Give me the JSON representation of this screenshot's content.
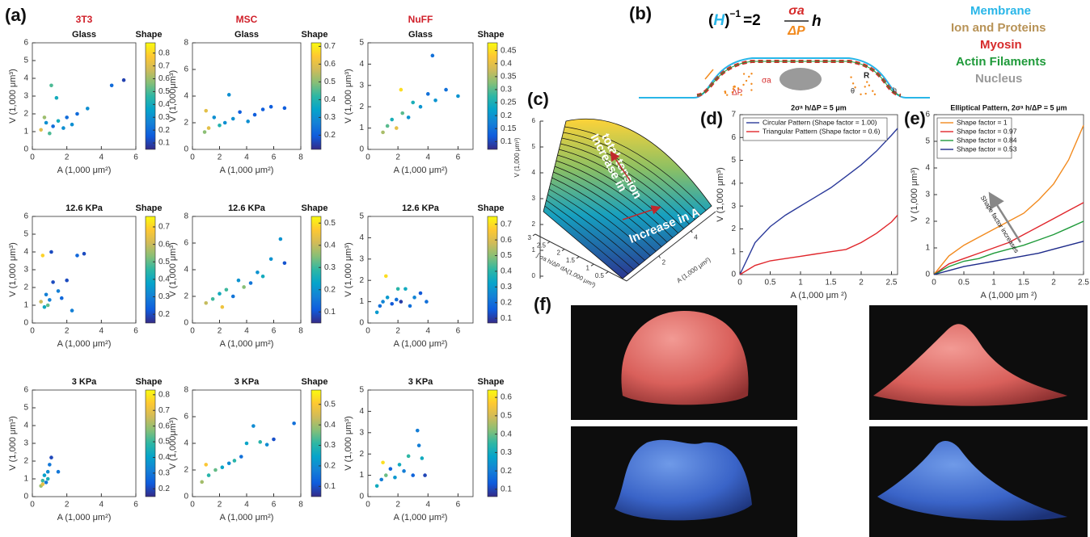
{
  "panel_labels": [
    "(a)",
    "(b)",
    "(c)",
    "(d)",
    "(e)",
    "(f)"
  ],
  "diagram_b": {
    "formula": {
      "open": "(",
      "H": "H",
      "close": ")",
      "exponent": "−1",
      "equals": "=2",
      "numerator": "σa",
      "denominator": "ΔP",
      "rhs": "h"
    },
    "legend": [
      "Membrane",
      "Ion and Proteins",
      "Myosin",
      "Actin Filaments",
      "Nucleus"
    ],
    "labels": {
      "sigma": "σa",
      "pressure": "ΔP",
      "radius": "R",
      "angle": "θ",
      "thickness": "h"
    }
  },
  "chart_data": [
    {
      "type": "scatter",
      "cell_type": "3T3",
      "title": "Glass",
      "colorbar_label": "Shape",
      "xlabel": "A (1,000 μm²)",
      "ylabel": "V (1,000 μm³)",
      "xlim": [
        0,
        6
      ],
      "ylim": [
        0,
        6
      ],
      "xticks": [
        0,
        2,
        4,
        6
      ],
      "yticks": [
        0,
        1,
        2,
        3,
        4,
        5,
        6
      ],
      "clim": [
        0.05,
        0.88
      ],
      "cticks": [
        0.1,
        0.2,
        0.3,
        0.4,
        0.5,
        0.6,
        0.7,
        0.8
      ],
      "x": [
        0.5,
        0.8,
        1.0,
        1.2,
        1.5,
        1.8,
        2.0,
        2.3,
        2.6,
        3.2,
        4.6,
        5.3,
        1.1,
        0.7,
        1.4
      ],
      "values": [
        1.1,
        1.5,
        0.9,
        1.3,
        1.6,
        1.2,
        1.8,
        1.4,
        2.0,
        2.3,
        3.6,
        3.9,
        3.6,
        1.8,
        2.9
      ],
      "color_values": [
        0.7,
        0.3,
        0.5,
        0.2,
        0.4,
        0.3,
        0.2,
        0.3,
        0.2,
        0.3,
        0.2,
        0.1,
        0.5,
        0.6,
        0.4
      ]
    },
    {
      "type": "scatter",
      "cell_type": "MSC",
      "title": "Glass",
      "colorbar_label": "Shape",
      "xlabel": "A (1,000 μm²)",
      "ylabel": "V (1,000μm³)",
      "xlim": [
        0,
        8
      ],
      "ylim": [
        0,
        8
      ],
      "xticks": [
        0,
        2,
        4,
        6,
        8
      ],
      "yticks": [
        0,
        2,
        4,
        6,
        8
      ],
      "clim": [
        0.12,
        0.72
      ],
      "cticks": [
        0.2,
        0.3,
        0.4,
        0.5,
        0.6,
        0.7
      ],
      "x": [
        0.9,
        1.2,
        1.6,
        2.0,
        2.4,
        3.0,
        3.5,
        4.1,
        4.6,
        5.2,
        5.8,
        6.8,
        1.0,
        2.7
      ],
      "values": [
        1.3,
        1.6,
        2.4,
        1.8,
        2.0,
        2.3,
        2.8,
        2.1,
        2.6,
        3.0,
        3.2,
        3.1,
        2.9,
        4.1
      ],
      "color_values": [
        0.5,
        0.6,
        0.3,
        0.4,
        0.3,
        0.3,
        0.2,
        0.3,
        0.2,
        0.2,
        0.2,
        0.2,
        0.6,
        0.3
      ]
    },
    {
      "type": "scatter",
      "cell_type": "NuFF",
      "title": "Glass",
      "colorbar_label": "Shape",
      "xlabel": "A (1,000 μm²)",
      "ylabel": "V (1,000 μm³)",
      "xlim": [
        0,
        7
      ],
      "ylim": [
        0,
        5
      ],
      "xticks": [
        0,
        2,
        4,
        6
      ],
      "yticks": [
        0,
        1,
        2,
        3,
        4,
        5
      ],
      "clim": [
        0.07,
        0.48
      ],
      "cticks": [
        0.1,
        0.15,
        0.2,
        0.25,
        0.3,
        0.35,
        0.4,
        0.45
      ],
      "x": [
        1.0,
        1.3,
        1.6,
        1.9,
        2.3,
        2.7,
        3.0,
        3.5,
        4.0,
        4.3,
        4.5,
        5.2,
        6.0,
        2.2
      ],
      "values": [
        0.8,
        1.1,
        1.4,
        1.0,
        1.7,
        1.5,
        2.2,
        2.0,
        2.6,
        4.4,
        2.3,
        2.8,
        2.5,
        2.8
      ],
      "color_values": [
        0.35,
        0.3,
        0.25,
        0.4,
        0.3,
        0.2,
        0.25,
        0.2,
        0.15,
        0.15,
        0.2,
        0.15,
        0.2,
        0.45
      ]
    },
    {
      "type": "scatter",
      "title": "12.6 KPa",
      "colorbar_label": "Shape",
      "xlabel": "A (1,000 μm²)",
      "ylabel": "V (1,000 μm³)",
      "xlim": [
        0,
        6
      ],
      "ylim": [
        0,
        6
      ],
      "xticks": [
        0,
        2,
        4,
        6
      ],
      "yticks": [
        0,
        1,
        2,
        3,
        4,
        5,
        6
      ],
      "clim": [
        0.15,
        0.76
      ],
      "cticks": [
        0.2,
        0.3,
        0.4,
        0.5,
        0.6,
        0.7
      ],
      "x": [
        0.5,
        0.7,
        0.8,
        1.0,
        1.2,
        1.5,
        1.7,
        2.0,
        2.3,
        2.6,
        3.0,
        0.6,
        1.1,
        0.9
      ],
      "values": [
        1.2,
        0.9,
        1.6,
        1.3,
        2.3,
        1.8,
        1.4,
        2.4,
        0.7,
        3.8,
        3.9,
        3.8,
        4.0,
        1.0
      ],
      "color_values": [
        0.6,
        0.4,
        0.3,
        0.3,
        0.2,
        0.3,
        0.25,
        0.2,
        0.3,
        0.25,
        0.2,
        0.7,
        0.2,
        0.5
      ]
    },
    {
      "type": "scatter",
      "title": "12.6 KPa",
      "colorbar_label": "Shape",
      "xlabel": "A (1,000 μm²)",
      "ylabel": "V (1,000 μm³)",
      "xlim": [
        0,
        8
      ],
      "ylim": [
        0,
        8
      ],
      "xticks": [
        0,
        2,
        4,
        6,
        8
      ],
      "yticks": [
        0,
        2,
        4,
        6,
        8
      ],
      "clim": [
        0.05,
        0.53
      ],
      "cticks": [
        0.1,
        0.2,
        0.3,
        0.4,
        0.5
      ],
      "x": [
        1.0,
        1.5,
        2.0,
        2.5,
        3.0,
        3.4,
        3.8,
        4.3,
        4.8,
        5.2,
        5.8,
        6.5,
        6.8,
        2.2
      ],
      "values": [
        1.5,
        1.8,
        2.2,
        2.5,
        2.0,
        3.2,
        2.7,
        3.0,
        3.8,
        3.5,
        4.8,
        6.3,
        4.5,
        1.2
      ],
      "color_values": [
        0.4,
        0.3,
        0.25,
        0.3,
        0.15,
        0.2,
        0.35,
        0.15,
        0.2,
        0.25,
        0.2,
        0.2,
        0.1,
        0.45
      ]
    },
    {
      "type": "scatter",
      "title": "12.6 KPa",
      "colorbar_label": "Shape",
      "xlabel": "A (1,000 μm²)",
      "ylabel": "V (1,000 μm³)",
      "xlim": [
        0,
        7
      ],
      "ylim": [
        0,
        5
      ],
      "xticks": [
        0,
        2,
        4,
        6
      ],
      "yticks": [
        0,
        1,
        2,
        3,
        4,
        5
      ],
      "clim": [
        0.07,
        0.75
      ],
      "cticks": [
        0.1,
        0.2,
        0.3,
        0.4,
        0.5,
        0.6,
        0.7
      ],
      "x": [
        0.6,
        0.8,
        1.0,
        1.3,
        1.6,
        1.9,
        2.2,
        2.5,
        2.8,
        3.1,
        3.5,
        3.9,
        1.2,
        2.0
      ],
      "values": [
        0.5,
        0.8,
        1.0,
        1.2,
        0.9,
        1.1,
        1.0,
        1.6,
        0.8,
        1.2,
        1.4,
        1.0,
        2.2,
        1.6
      ],
      "color_values": [
        0.3,
        0.2,
        0.25,
        0.3,
        0.15,
        0.2,
        0.1,
        0.35,
        0.2,
        0.25,
        0.15,
        0.2,
        0.7,
        0.4
      ]
    },
    {
      "type": "scatter",
      "title": "3 KPa",
      "colorbar_label": "Shape",
      "xlabel": "A (1,000 μm²)",
      "ylabel": "V (1,000 μm³)",
      "xlim": [
        0,
        6
      ],
      "ylim": [
        0,
        6
      ],
      "xticks": [
        0,
        2,
        4,
        6
      ],
      "yticks": [
        0,
        1,
        2,
        3,
        4,
        5,
        6
      ],
      "clim": [
        0.15,
        0.83
      ],
      "cticks": [
        0.2,
        0.3,
        0.4,
        0.5,
        0.6,
        0.7,
        0.8
      ],
      "x": [
        0.5,
        0.6,
        0.7,
        0.8,
        0.9,
        1.0,
        1.1,
        1.5,
        0.9,
        0.6
      ],
      "values": [
        0.6,
        0.9,
        1.2,
        0.8,
        1.4,
        1.8,
        2.2,
        1.4,
        1.0,
        0.7
      ],
      "color_values": [
        0.6,
        0.5,
        0.4,
        0.3,
        0.35,
        0.3,
        0.2,
        0.3,
        0.45,
        0.7
      ]
    },
    {
      "type": "scatter",
      "title": "3 KPa",
      "colorbar_label": "Shape",
      "xlabel": "A (1,000 μm²)",
      "ylabel": "V (1,000μm³)",
      "xlim": [
        0,
        8
      ],
      "ylim": [
        0,
        8
      ],
      "xticks": [
        0,
        2,
        4,
        6,
        8
      ],
      "yticks": [
        0,
        2,
        4,
        6,
        8
      ],
      "clim": [
        0.05,
        0.57
      ],
      "cticks": [
        0.1,
        0.2,
        0.3,
        0.4,
        0.5
      ],
      "x": [
        0.7,
        1.2,
        1.7,
        2.2,
        2.7,
        3.1,
        3.6,
        4.0,
        4.5,
        5.0,
        5.5,
        6.0,
        7.5,
        1.0
      ],
      "values": [
        1.1,
        1.6,
        2.0,
        2.2,
        2.5,
        2.7,
        3.0,
        4.0,
        5.3,
        4.1,
        3.9,
        4.3,
        5.5,
        2.4
      ],
      "color_values": [
        0.4,
        0.3,
        0.35,
        0.25,
        0.2,
        0.3,
        0.15,
        0.25,
        0.2,
        0.3,
        0.2,
        0.1,
        0.15,
        0.5
      ]
    },
    {
      "type": "scatter",
      "title": "3 KPa",
      "colorbar_label": "Shape",
      "xlabel": "A (1,000 μm²)",
      "ylabel": "V (1,000 μm³)",
      "xlim": [
        0,
        7
      ],
      "ylim": [
        0,
        5
      ],
      "xticks": [
        0,
        2,
        4,
        6
      ],
      "yticks": [
        0,
        1,
        2,
        3,
        4,
        5
      ],
      "clim": [
        0.06,
        0.64
      ],
      "cticks": [
        0.1,
        0.2,
        0.3,
        0.4,
        0.5,
        0.6
      ],
      "x": [
        0.6,
        0.9,
        1.2,
        1.5,
        1.8,
        2.1,
        2.4,
        2.7,
        3.0,
        3.3,
        3.6,
        3.8,
        1.0,
        3.4
      ],
      "values": [
        0.5,
        0.8,
        1.0,
        1.3,
        0.9,
        1.5,
        1.2,
        1.9,
        1.0,
        3.1,
        1.8,
        1.0,
        1.6,
        2.4
      ],
      "color_values": [
        0.3,
        0.2,
        0.4,
        0.15,
        0.25,
        0.3,
        0.2,
        0.35,
        0.15,
        0.2,
        0.3,
        0.1,
        0.6,
        0.2
      ]
    },
    {
      "type": "surface",
      "zlabel": "V (1,000 μm³)",
      "ylabel": "∫ σa h/ΔP dA(1,000 μm³)",
      "xlabel": "A (1,000 μm²)",
      "zticks": [
        0,
        1,
        2,
        3,
        4,
        5,
        6
      ],
      "yticks": [
        0.5,
        1,
        1.5,
        2,
        2.5,
        3
      ],
      "xticks": [
        2,
        4
      ],
      "annotations": [
        [
          "Increase in",
          "total tension"
        ],
        [
          "Increase in A"
        ]
      ]
    },
    {
      "type": "line",
      "title": "2σᵃ h/ΔP = 5 μm",
      "xlabel": "A (1,000 μm ²)",
      "ylabel": "V (1,000 μm³)",
      "xlim": [
        0,
        2.6
      ],
      "ylim": [
        0,
        7
      ],
      "xticks": [
        0,
        0.5,
        1,
        1.5,
        2,
        2.5
      ],
      "yticks": [
        0,
        1,
        2,
        3,
        4,
        5,
        6,
        7
      ],
      "x": [
        0,
        0.25,
        0.5,
        0.75,
        1,
        1.25,
        1.5,
        1.75,
        2,
        2.25,
        2.5,
        2.6
      ],
      "series": [
        {
          "name": "Circular Pattern (Shape factor = 1.00)",
          "color": "#2b3a9a",
          "values": [
            0,
            1.4,
            2.1,
            2.6,
            3.0,
            3.4,
            3.8,
            4.3,
            4.8,
            5.4,
            6.1,
            6.4
          ]
        },
        {
          "name": "Triangular Pattern (Shape factor = 0.6)",
          "color": "#e0262b",
          "values": [
            0,
            0.4,
            0.6,
            0.7,
            0.8,
            0.9,
            1.0,
            1.1,
            1.4,
            1.8,
            2.3,
            2.6
          ]
        }
      ]
    },
    {
      "type": "line",
      "title": "Elliptical Pattern, 2σᵃ h/ΔP = 5 μm",
      "xlabel": "A (1,000 μm ²)",
      "ylabel": "V (1,000 μm³)",
      "xlim": [
        0,
        2.5
      ],
      "ylim": [
        0,
        6
      ],
      "xticks": [
        0,
        0.5,
        1,
        1.5,
        2,
        2.5
      ],
      "yticks": [
        0,
        1,
        2,
        3,
        4,
        5,
        6
      ],
      "annotation": "Shape factor increases",
      "x": [
        0,
        0.25,
        0.5,
        0.75,
        1,
        1.25,
        1.5,
        1.75,
        2,
        2.25,
        2.5
      ],
      "series": [
        {
          "name": "Shape factor = 1",
          "color": "#f28a1e",
          "values": [
            0,
            0.7,
            1.1,
            1.4,
            1.7,
            2.0,
            2.3,
            2.8,
            3.4,
            4.3,
            5.6
          ]
        },
        {
          "name": "Shape factor = 0.97",
          "color": "#e0262b",
          "values": [
            0,
            0.4,
            0.6,
            0.8,
            1.0,
            1.2,
            1.5,
            1.8,
            2.1,
            2.4,
            2.7
          ]
        },
        {
          "name": "Shape factor = 0.84",
          "color": "#1f9a3a",
          "values": [
            0,
            0.3,
            0.5,
            0.6,
            0.8,
            0.95,
            1.1,
            1.3,
            1.5,
            1.75,
            2.0
          ]
        },
        {
          "name": "Shape factor = 0.53",
          "color": "#1d2a8a",
          "values": [
            0,
            0.15,
            0.3,
            0.4,
            0.5,
            0.6,
            0.7,
            0.8,
            0.95,
            1.1,
            1.25
          ]
        }
      ]
    }
  ]
}
